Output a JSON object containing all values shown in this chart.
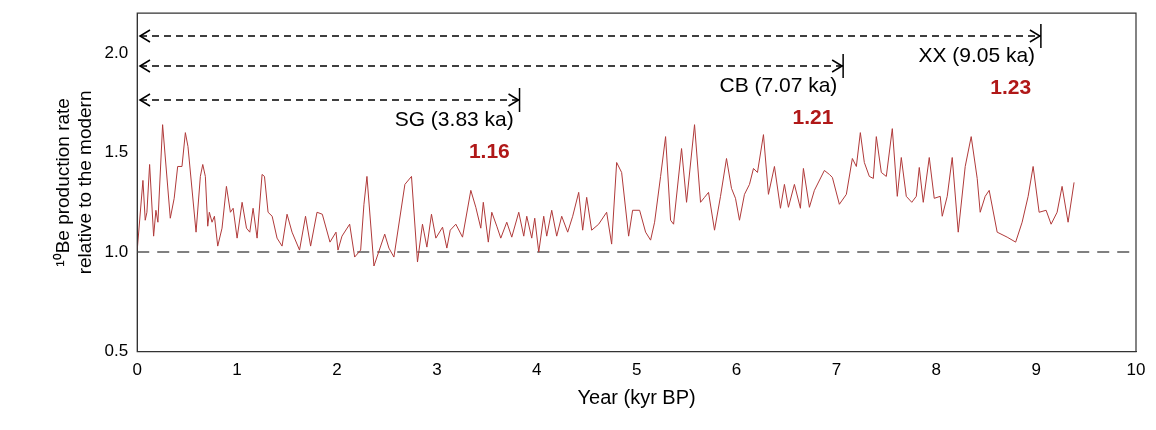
{
  "chart_data": {
    "type": "line",
    "xlabel": "Year (kyr BP)",
    "ylabel": "¹⁰Be production rate relative to the modern",
    "xlim": [
      0,
      10
    ],
    "xticks": [
      0,
      1,
      2,
      3,
      4,
      5,
      6,
      7,
      8,
      9,
      10
    ],
    "ylim": [
      0.5,
      2.2
    ],
    "yticks": [
      0.5,
      {
        "value": 1,
        "label": "1.0"
      },
      1.5,
      {
        "value": 2,
        "label": "2.0"
      }
    ],
    "grid": false,
    "legend": false,
    "marker": "none",
    "line_style": "solid",
    "ref_lines": [
      {
        "axis": "y",
        "value": 1.0,
        "color": "#808080",
        "line_style": "dashed"
      }
    ],
    "annotations": [
      "SG (3.83 ka)",
      "CB (7.07 ka)",
      "XX (9.05 ka)",
      "1.16",
      "1.21",
      "1.23"
    ],
    "series": [
      {
        "color": "#b03a3a",
        "x": [
          0,
          0.057,
          0.08,
          0.097,
          0.124,
          0.164,
          0.187,
          0.207,
          0.254,
          0.331,
          0.37,
          0.405,
          0.448,
          0.482,
          0.508,
          0.589,
          0.632,
          0.656,
          0.682,
          0.706,
          0.722,
          0.749,
          0.773,
          0.806,
          0.849,
          0.893,
          0.933,
          0.96,
          1.0,
          1.05,
          1.094,
          1.127,
          1.16,
          1.2,
          1.25,
          1.274,
          1.31,
          1.351,
          1.4,
          1.45,
          1.5,
          1.55,
          1.625,
          1.685,
          1.736,
          1.8,
          1.853,
          1.93,
          1.99,
          2.01,
          2.05,
          2.127,
          2.177,
          2.237,
          2.27,
          2.3,
          2.37,
          2.478,
          2.52,
          2.57,
          2.68,
          2.746,
          2.806,
          2.856,
          2.9,
          2.946,
          2.99,
          3.057,
          3.1,
          3.134,
          3.19,
          3.257,
          3.34,
          3.39,
          3.44,
          3.465,
          3.515,
          3.55,
          3.6,
          3.64,
          3.7,
          3.75,
          3.82,
          3.87,
          3.9,
          3.95,
          3.98,
          4.02,
          4.07,
          4.1,
          4.15,
          4.2,
          4.25,
          4.31,
          4.36,
          4.42,
          4.46,
          4.5,
          4.55,
          4.62,
          4.7,
          4.75,
          4.8,
          4.85,
          4.92,
          4.96,
          5.03,
          5.09,
          5.14,
          5.18,
          5.24,
          5.29,
          5.34,
          5.37,
          5.45,
          5.5,
          5.58,
          5.64,
          5.68,
          5.72,
          5.78,
          5.84,
          5.9,
          5.95,
          5.99,
          6.03,
          6.08,
          6.13,
          6.17,
          6.21,
          6.27,
          6.32,
          6.38,
          6.44,
          6.48,
          6.52,
          6.58,
          6.64,
          6.67,
          6.73,
          6.78,
          6.88,
          6.93,
          6.96,
          7.03,
          7.1,
          7.16,
          7.2,
          7.24,
          7.28,
          7.33,
          7.37,
          7.4,
          7.45,
          7.5,
          7.56,
          7.61,
          7.65,
          7.7,
          7.755,
          7.8,
          7.83,
          7.87,
          7.93,
          7.98,
          8.04,
          8.06,
          8.11,
          8.16,
          8.22,
          8.29,
          8.35,
          8.41,
          8.44,
          8.49,
          8.53,
          8.61,
          8.71,
          8.795,
          8.86,
          8.92,
          8.97,
          9.03,
          9.1,
          9.15,
          9.21,
          9.26,
          9.32,
          9.38
        ],
        "values": [
          1.01,
          1.36,
          1.16,
          1.2,
          1.44,
          1.08,
          1.21,
          1.15,
          1.64,
          1.17,
          1.27,
          1.43,
          1.43,
          1.6,
          1.53,
          1.1,
          1.38,
          1.44,
          1.38,
          1.13,
          1.2,
          1.15,
          1.18,
          1.03,
          1.12,
          1.33,
          1.2,
          1.22,
          1.07,
          1.25,
          1.12,
          1.1,
          1.22,
          1.07,
          1.39,
          1.38,
          1.2,
          1.18,
          1.07,
          1.03,
          1.19,
          1.1,
          1.01,
          1.18,
          1.03,
          1.2,
          1.19,
          1.05,
          1.1,
          1.01,
          1.08,
          1.14,
          0.975,
          1.01,
          1.24,
          1.38,
          0.93,
          1.09,
          1.02,
          0.975,
          1.34,
          1.38,
          0.95,
          1.14,
          1.025,
          1.19,
          1.07,
          1.125,
          1.02,
          1.11,
          1.14,
          1.075,
          1.31,
          1.225,
          1.12,
          1.25,
          1.05,
          1.2,
          1.13,
          1.07,
          1.15,
          1.075,
          1.2,
          1.08,
          1.18,
          1.07,
          1.17,
          1.0,
          1.18,
          1.08,
          1.21,
          1.08,
          1.18,
          1.1,
          1.18,
          1.3,
          1.11,
          1.275,
          1.11,
          1.14,
          1.2,
          1.04,
          1.45,
          1.4,
          1.08,
          1.21,
          1.21,
          1.1,
          1.06,
          1.15,
          1.38,
          1.58,
          1.16,
          1.14,
          1.52,
          1.25,
          1.64,
          1.25,
          1.275,
          1.3,
          1.11,
          1.28,
          1.47,
          1.32,
          1.27,
          1.16,
          1.29,
          1.34,
          1.42,
          1.4,
          1.59,
          1.29,
          1.43,
          1.22,
          1.34,
          1.225,
          1.34,
          1.22,
          1.42,
          1.225,
          1.31,
          1.41,
          1.39,
          1.375,
          1.24,
          1.29,
          1.47,
          1.43,
          1.6,
          1.45,
          1.38,
          1.37,
          1.58,
          1.4,
          1.38,
          1.62,
          1.28,
          1.475,
          1.28,
          1.25,
          1.28,
          1.425,
          1.25,
          1.475,
          1.27,
          1.28,
          1.18,
          1.28,
          1.475,
          1.1,
          1.43,
          1.58,
          1.37,
          1.2,
          1.28,
          1.31,
          1.1,
          1.075,
          1.05,
          1.15,
          1.28,
          1.43,
          1.2,
          1.21,
          1.14,
          1.2,
          1.33,
          1.15,
          1.35
        ]
      }
    ]
  }
}
